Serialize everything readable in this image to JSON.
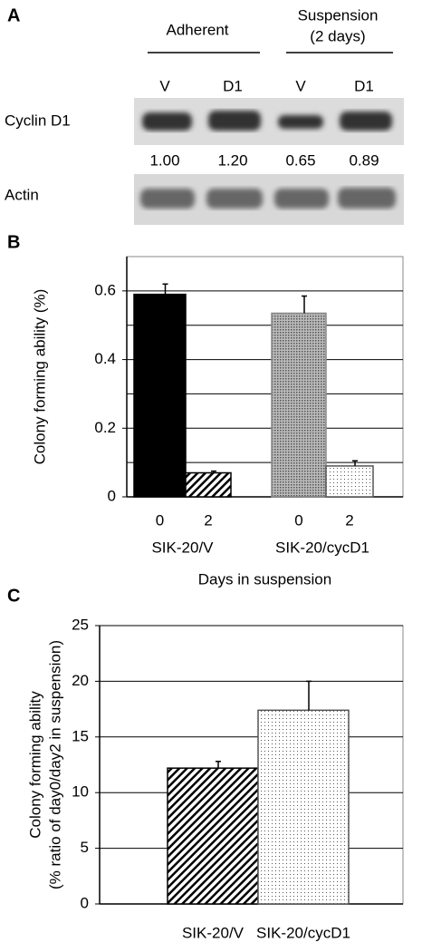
{
  "blot": {
    "panel": "A",
    "groups": [
      "Adherent",
      "Suspension",
      "(2 days)"
    ],
    "lanes": [
      "V",
      "D1",
      "V",
      "D1"
    ],
    "rows": [
      {
        "label": "Cyclin D1",
        "quantities": [
          "1.00",
          "1.20",
          "0.65",
          "0.89"
        ]
      },
      {
        "label": "Actin"
      }
    ]
  },
  "chart_data": [
    {
      "type": "bar",
      "panel": "B",
      "ylabel": "Colony forming ability (%)",
      "xlabel": "Days in suspension",
      "categories": [
        "0",
        "2",
        "0",
        "2"
      ],
      "groups": [
        "SIK-20/V",
        "SIK-20/cycD1"
      ],
      "values": [
        0.59,
        0.07,
        0.535,
        0.09
      ],
      "errors": [
        0.03,
        0.005,
        0.05,
        0.015
      ],
      "colors": [
        "#000000",
        "#000000",
        "#888888",
        "#555555"
      ],
      "patterns": [
        "solid",
        "diagonal",
        "crosshatch",
        "dots"
      ],
      "ylim": [
        0,
        0.7
      ],
      "yticks": [
        0,
        0.2,
        0.4,
        0.6
      ],
      "grid_lines": [
        0.1,
        0.2,
        0.3,
        0.4,
        0.5,
        0.6
      ]
    },
    {
      "type": "bar",
      "panel": "C",
      "ylabel": [
        "Colony forming ability",
        "(% ratio of day0/day2 in suspension)"
      ],
      "categories": [
        "SIK-20/V",
        "SIK-20/cycD1"
      ],
      "values": [
        12.2,
        17.4
      ],
      "errors": [
        0.6,
        2.6
      ],
      "colors": [
        "#000000",
        "#555555"
      ],
      "patterns": [
        "diagonal",
        "dots"
      ],
      "ylim": [
        0,
        25
      ],
      "yticks": [
        0,
        5,
        10,
        15,
        20,
        25
      ],
      "grid_lines": [
        5,
        10,
        15,
        20,
        25
      ]
    }
  ]
}
